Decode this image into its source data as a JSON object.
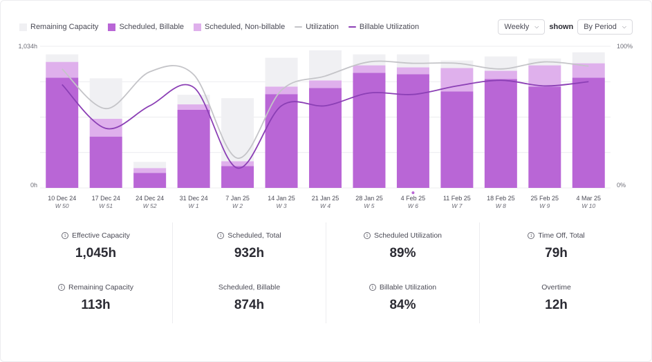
{
  "legend": [
    {
      "label": "Remaining Capacity",
      "kind": "box",
      "color": "#f0f0f3"
    },
    {
      "label": "Scheduled, Billable",
      "kind": "box",
      "color": "#b966d6"
    },
    {
      "label": "Scheduled, Non-billable",
      "kind": "box",
      "color": "#dfb0ec"
    },
    {
      "label": "Utilization",
      "kind": "line",
      "color": "#c4c4c8"
    },
    {
      "label": "Billable Utilization",
      "kind": "line",
      "color": "#8b3fb5"
    }
  ],
  "controls": {
    "period_select": "Weekly",
    "shown_label": "shown",
    "shown_select": "By Period"
  },
  "chart_data": {
    "type": "bar",
    "stacked": true,
    "y_left": {
      "min_label": "0h",
      "max_label": "1,034h",
      "max": 1034,
      "unit": "h"
    },
    "y_right": {
      "min_label": "0%",
      "max_label": "100%",
      "max": 100,
      "unit": "%"
    },
    "categories": [
      "10 Dec 24",
      "17 Dec 24",
      "24 Dec 24",
      "31 Dec 24",
      "7 Jan 25",
      "14 Jan 25",
      "21 Jan 25",
      "28 Jan 25",
      "4 Feb 25",
      "11 Feb 25",
      "18 Feb 25",
      "25 Feb 25",
      "4 Mar 25"
    ],
    "weeks": [
      "W 50",
      "W 51",
      "W 52",
      "W 1",
      "W 2",
      "W 3",
      "W 4",
      "W 5",
      "W 6",
      "W 7",
      "W 8",
      "W 9",
      "W 10"
    ],
    "current_index": 8,
    "series": [
      {
        "name": "Scheduled, Billable",
        "color": "#b966d6",
        "values": [
          805,
          375,
          110,
          570,
          160,
          685,
          730,
          840,
          830,
          705,
          795,
          740,
          805
        ]
      },
      {
        "name": "Scheduled, Non-billable",
        "color": "#dfb0ec",
        "values": [
          115,
          130,
          35,
          40,
          35,
          55,
          55,
          55,
          50,
          170,
          60,
          155,
          105
        ]
      },
      {
        "name": "Remaining Capacity",
        "color": "#f0f0f3",
        "values": [
          55,
          295,
          45,
          70,
          460,
          210,
          220,
          80,
          95,
          55,
          105,
          50,
          80
        ]
      }
    ],
    "lines": [
      {
        "name": "Utilization",
        "color": "#c4c4c8",
        "values": [
          84,
          56,
          82,
          80,
          21,
          69,
          79,
          89,
          88,
          88,
          84,
          89,
          86
        ]
      },
      {
        "name": "Billable Utilization",
        "color": "#8b3fb5",
        "values": [
          73,
          42,
          58,
          71,
          14,
          58,
          58,
          67,
          66,
          72,
          76,
          72,
          75
        ]
      }
    ]
  },
  "stats": [
    {
      "items": [
        {
          "label": "Effective Capacity",
          "value": "1,045h",
          "info": true
        },
        {
          "label": "Remaining Capacity",
          "value": "113h",
          "info": true
        }
      ]
    },
    {
      "items": [
        {
          "label": "Scheduled, Total",
          "value": "932h",
          "info": true
        },
        {
          "label": "Scheduled, Billable",
          "value": "874h",
          "info": false
        }
      ]
    },
    {
      "items": [
        {
          "label": "Scheduled Utilization",
          "value": "89%",
          "info": true
        },
        {
          "label": "Billable Utilization",
          "value": "84%",
          "info": true
        }
      ]
    },
    {
      "items": [
        {
          "label": "Time Off, Total",
          "value": "79h",
          "info": true
        },
        {
          "label": "Overtime",
          "value": "12h",
          "info": false
        }
      ]
    }
  ]
}
